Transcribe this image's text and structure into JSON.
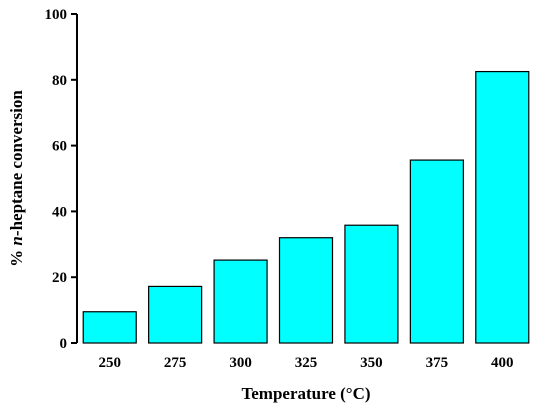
{
  "chart_data": {
    "type": "bar",
    "categories": [
      "250",
      "275",
      "300",
      "325",
      "350",
      "375",
      "400"
    ],
    "values": [
      9.5,
      17.2,
      25.2,
      32.0,
      35.8,
      55.6,
      82.5
    ],
    "xlabel": "Temperature (°C)",
    "ylabel_prefix": "% ",
    "ylabel_italic": "n",
    "ylabel_suffix": "-heptane conversion",
    "ylim": [
      0,
      100
    ],
    "yticks": [
      "0",
      "20",
      "40",
      "60",
      "80",
      "100"
    ],
    "bar_color": "#00FFFF",
    "grid": false,
    "legend": "none"
  }
}
